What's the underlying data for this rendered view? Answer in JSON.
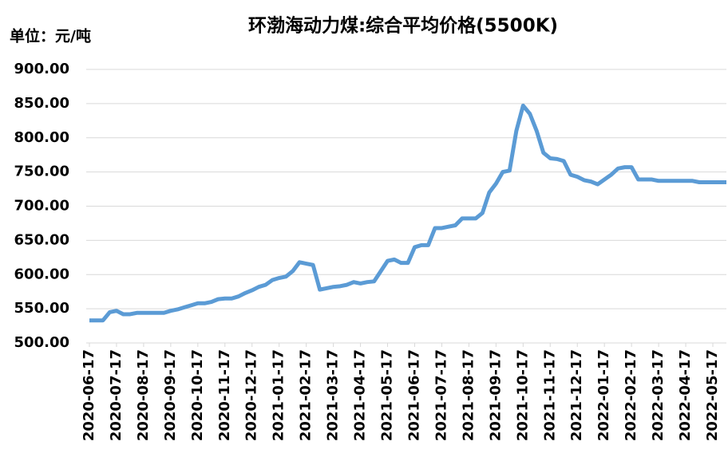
{
  "chart_data": {
    "type": "line",
    "title": "环渤海动力煤:综合平均价格(5500K)",
    "y_unit_label": "单位：元/吨",
    "categories": [
      "2020-06-17",
      null,
      null,
      null,
      "2020-07-17",
      null,
      null,
      null,
      "2020-08-17",
      null,
      null,
      null,
      "2020-09-17",
      null,
      null,
      null,
      "2020-10-17",
      null,
      null,
      null,
      "2020-11-17",
      null,
      null,
      null,
      "2020-12-17",
      null,
      null,
      null,
      "2021-01-17",
      null,
      null,
      null,
      "2021-02-17",
      null,
      null,
      null,
      "2021-03-17",
      null,
      null,
      null,
      "2021-04-17",
      null,
      null,
      null,
      "2021-05-17",
      null,
      null,
      null,
      "2021-06-17",
      null,
      null,
      null,
      "2021-07-17",
      null,
      null,
      null,
      "2021-08-17",
      null,
      null,
      null,
      "2021-09-17",
      null,
      null,
      null,
      "2021-10-17",
      null,
      null,
      null,
      "2021-11-17",
      null,
      null,
      null,
      "2021-12-17",
      null,
      null,
      null,
      "2022-01-17",
      null,
      null,
      null,
      "2022-02-17",
      null,
      null,
      null,
      "2022-03-17",
      null,
      null,
      null,
      "2022-04-17",
      null,
      null,
      null,
      "2022-05-17",
      null,
      null
    ],
    "series": [
      {
        "name": "环渤海动力煤:综合平均价格(5500K)",
        "color": "#5b9bd5",
        "values": [
          533,
          533,
          533,
          545,
          547,
          542,
          542,
          544,
          544,
          544,
          544,
          544,
          547,
          549,
          552,
          555,
          558,
          558,
          560,
          564,
          565,
          565,
          568,
          573,
          577,
          582,
          585,
          592,
          595,
          597,
          605,
          618,
          616,
          614,
          578,
          580,
          582,
          583,
          585,
          589,
          587,
          589,
          590,
          605,
          620,
          622,
          617,
          617,
          640,
          643,
          643,
          668,
          668,
          670,
          672,
          682,
          682,
          682,
          690,
          720,
          733,
          750,
          752,
          810,
          847,
          835,
          810,
          778,
          770,
          769,
          766,
          746,
          743,
          738,
          736,
          732,
          739,
          746,
          755,
          757,
          757,
          739,
          739,
          739,
          737,
          737,
          737,
          737,
          737,
          737,
          735,
          735,
          735,
          735,
          735
        ]
      }
    ],
    "ylim": [
      500,
      900
    ],
    "yticks": [
      {
        "value": 500,
        "label": "500.00"
      },
      {
        "value": 550,
        "label": "550.00"
      },
      {
        "value": 600,
        "label": "600.00"
      },
      {
        "value": 650,
        "label": "650.00"
      },
      {
        "value": 700,
        "label": "700.00"
      },
      {
        "value": 750,
        "label": "750.00"
      },
      {
        "value": 800,
        "label": "800.00"
      },
      {
        "value": 850,
        "label": "850.00"
      },
      {
        "value": 900,
        "label": "900.00"
      }
    ],
    "grid": true
  }
}
